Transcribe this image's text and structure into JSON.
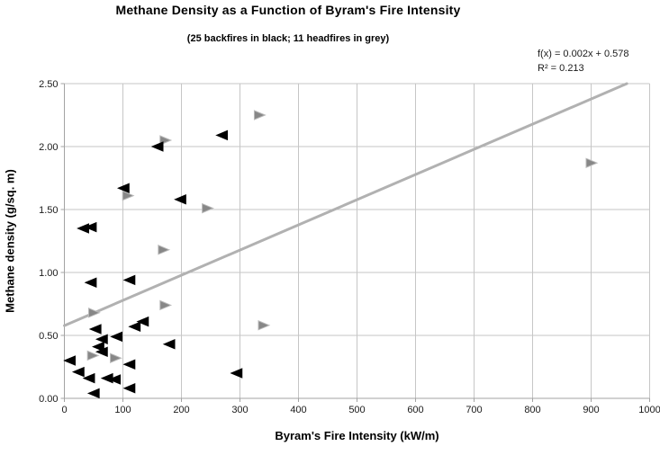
{
  "chart_data": {
    "type": "scatter",
    "title": "Methane Density as a Function of Byram's Fire Intensity",
    "subtitle": "(25 backfires in black; 11 headfires in grey)",
    "xlabel": "Byram's Fire Intensity (kW/m)",
    "ylabel": "Methane density (g/sq. m)",
    "xlim": [
      0,
      1000
    ],
    "ylim": [
      0,
      2.5
    ],
    "x_ticks": [
      0,
      100,
      200,
      300,
      400,
      500,
      600,
      700,
      800,
      900,
      1000
    ],
    "y_ticks": [
      0,
      0.5,
      1.0,
      1.5,
      2.0,
      2.5
    ],
    "y_tick_labels": [
      "0.00",
      "0.50",
      "1.00",
      "1.50",
      "2.00",
      "2.50"
    ],
    "grid": true,
    "legend_position": "none",
    "colors": {
      "grid": "#c6c6c6",
      "axis": "#a3a3a3",
      "tick_text": "#1a1a1a",
      "background": "#ffffff"
    },
    "series": [
      {
        "name": "headfires",
        "marker": "triangle-right",
        "fill": "#878787",
        "stroke": "#b8b8b8",
        "points": [
          [
            172,
            2.05
          ],
          [
            333,
            2.25
          ],
          [
            108,
            1.61
          ],
          [
            244,
            1.51
          ],
          [
            169,
            1.18
          ],
          [
            172,
            0.74
          ],
          [
            50,
            0.68
          ],
          [
            48,
            0.34
          ],
          [
            87,
            0.32
          ],
          [
            340,
            0.58
          ],
          [
            900,
            1.87
          ]
        ]
      },
      {
        "name": "backfires",
        "marker": "triangle-left",
        "fill": "#000000",
        "stroke": "#000000",
        "points": [
          [
            33,
            1.35
          ],
          [
            46,
            1.36
          ],
          [
            102,
            1.67
          ],
          [
            160,
            2.0
          ],
          [
            270,
            2.09
          ],
          [
            199,
            1.58
          ],
          [
            46,
            0.92
          ],
          [
            112,
            0.94
          ],
          [
            54,
            0.55
          ],
          [
            121,
            0.57
          ],
          [
            135,
            0.61
          ],
          [
            90,
            0.49
          ],
          [
            65,
            0.47
          ],
          [
            59,
            0.41
          ],
          [
            65,
            0.37
          ],
          [
            10,
            0.3
          ],
          [
            25,
            0.21
          ],
          [
            43,
            0.16
          ],
          [
            74,
            0.16
          ],
          [
            87,
            0.15
          ],
          [
            112,
            0.27
          ],
          [
            112,
            0.08
          ],
          [
            51,
            0.04
          ],
          [
            180,
            0.43
          ],
          [
            295,
            0.2
          ]
        ]
      }
    ],
    "trendline": {
      "slope": 0.002,
      "intercept": 0.578,
      "r_squared": 0.213,
      "color": "#b1b1b1",
      "label1": "f(x) = 0.002x + 0.578",
      "label2": "R² = 0.213"
    }
  }
}
